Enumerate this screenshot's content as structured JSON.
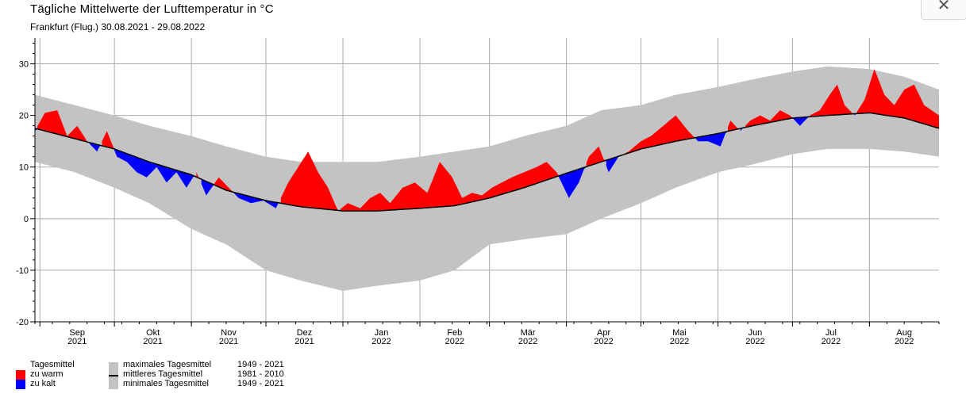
{
  "title": "Tägliche Mittelwerte der Lufttemperatur in °C",
  "subtitle": "Frankfurt (Flug.)  30.08.2021 - 29.08.2022",
  "close_icon": "close-icon",
  "legend": {
    "header": "Tagesmittel",
    "warm_label": "zu warm",
    "cold_label": "zu kalt",
    "max_label": "maximales Tagesmittel",
    "max_period": "1949 - 2021",
    "mean_label": "mittleres Tagesmittel",
    "mean_period": "1981 - 2010",
    "min_label": "minimales Tagesmittel",
    "min_period": "1949 - 2021"
  },
  "chart_data": {
    "type": "area",
    "title": "Tägliche Mittelwerte der Lufttemperatur in °C",
    "subtitle": "Frankfurt (Flug.)  30.08.2021 - 29.08.2022",
    "x_range": [
      "2021-08-30",
      "2022-08-29"
    ],
    "ylim": [
      -20,
      35
    ],
    "y_ticks": [
      -20,
      -10,
      0,
      10,
      20,
      30
    ],
    "grid": true,
    "colors": {
      "warm": "#ff0000",
      "cold": "#0000ff",
      "band": "#c3c3c3",
      "mean": "#000000",
      "grid": "#aaaaaa"
    },
    "x_ticks": [
      {
        "month": "Sep",
        "year": "2021"
      },
      {
        "month": "Okt",
        "year": "2021"
      },
      {
        "month": "Nov",
        "year": "2021"
      },
      {
        "month": "Dez",
        "year": "2021"
      },
      {
        "month": "Jan",
        "year": "2022"
      },
      {
        "month": "Feb",
        "year": "2022"
      },
      {
        "month": "Mär",
        "year": "2022"
      },
      {
        "month": "Apr",
        "year": "2022"
      },
      {
        "month": "Mai",
        "year": "2022"
      },
      {
        "month": "Jun",
        "year": "2022"
      },
      {
        "month": "Jul",
        "year": "2022"
      },
      {
        "month": "Aug",
        "year": "2022"
      }
    ],
    "series": [
      {
        "name": "mittleres Tagesmittel 1981 - 2010",
        "x": [
          "2021-08-30",
          "2021-09-15",
          "2021-10-01",
          "2021-10-15",
          "2021-11-01",
          "2021-11-15",
          "2021-12-01",
          "2021-12-15",
          "2022-01-01",
          "2022-01-15",
          "2022-02-01",
          "2022-02-15",
          "2022-03-01",
          "2022-03-15",
          "2022-04-01",
          "2022-04-15",
          "2022-05-01",
          "2022-05-15",
          "2022-06-01",
          "2022-06-15",
          "2022-07-01",
          "2022-07-15",
          "2022-08-01",
          "2022-08-15",
          "2022-08-29"
        ],
        "values": [
          17.5,
          15.5,
          13.5,
          11,
          8.5,
          5.5,
          3.5,
          2.3,
          1.5,
          1.5,
          2,
          2.5,
          4,
          6,
          8.8,
          11,
          13.5,
          15,
          16.5,
          18,
          19.5,
          20,
          20.5,
          19.5,
          17.5
        ]
      },
      {
        "name": "maximales Tagesmittel 1949 - 2021",
        "x": [
          "2021-08-30",
          "2021-09-15",
          "2021-10-01",
          "2021-10-15",
          "2021-11-01",
          "2021-11-15",
          "2021-12-01",
          "2021-12-15",
          "2022-01-01",
          "2022-01-15",
          "2022-02-01",
          "2022-02-15",
          "2022-03-01",
          "2022-03-15",
          "2022-04-01",
          "2022-04-15",
          "2022-05-01",
          "2022-05-15",
          "2022-06-01",
          "2022-06-15",
          "2022-07-01",
          "2022-07-15",
          "2022-08-01",
          "2022-08-15",
          "2022-08-29"
        ],
        "values": [
          24,
          22,
          20,
          18,
          16,
          14,
          12,
          11,
          11,
          11,
          12,
          13,
          14,
          16,
          18,
          21,
          22,
          24,
          25.5,
          27,
          28.5,
          29.5,
          29,
          27.5,
          25
        ]
      },
      {
        "name": "minimales Tagesmittel 1949 - 2021",
        "x": [
          "2021-08-30",
          "2021-09-15",
          "2021-10-01",
          "2021-10-15",
          "2021-11-01",
          "2021-11-15",
          "2021-12-01",
          "2021-12-15",
          "2022-01-01",
          "2022-01-15",
          "2022-02-01",
          "2022-02-15",
          "2022-03-01",
          "2022-03-15",
          "2022-04-01",
          "2022-04-15",
          "2022-05-01",
          "2022-05-15",
          "2022-06-01",
          "2022-06-15",
          "2022-07-01",
          "2022-07-15",
          "2022-08-01",
          "2022-08-15",
          "2022-08-29"
        ],
        "values": [
          11,
          9,
          6,
          3,
          -2,
          -5,
          -10,
          -12,
          -14,
          -13,
          -12,
          -10,
          -5,
          -4,
          -3,
          0,
          3,
          6,
          9,
          10.5,
          12.5,
          13.5,
          13.5,
          13,
          12
        ]
      },
      {
        "name": "Tagesmittel",
        "x": [
          "2021-08-30",
          "2021-09-03",
          "2021-09-08",
          "2021-09-12",
          "2021-09-16",
          "2021-09-20",
          "2021-09-24",
          "2021-09-28",
          "2021-10-02",
          "2021-10-06",
          "2021-10-10",
          "2021-10-14",
          "2021-10-18",
          "2021-10-22",
          "2021-10-26",
          "2021-10-30",
          "2021-11-03",
          "2021-11-07",
          "2021-11-12",
          "2021-11-16",
          "2021-11-20",
          "2021-11-25",
          "2021-11-30",
          "2021-12-05",
          "2021-12-10",
          "2021-12-14",
          "2021-12-18",
          "2021-12-22",
          "2021-12-26",
          "2021-12-30",
          "2022-01-03",
          "2022-01-08",
          "2022-01-12",
          "2022-01-16",
          "2022-01-20",
          "2022-01-25",
          "2022-01-30",
          "2022-02-04",
          "2022-02-09",
          "2022-02-14",
          "2022-02-18",
          "2022-02-22",
          "2022-02-26",
          "2022-03-02",
          "2022-03-06",
          "2022-03-10",
          "2022-03-15",
          "2022-03-20",
          "2022-03-24",
          "2022-03-28",
          "2022-04-02",
          "2022-04-06",
          "2022-04-10",
          "2022-04-14",
          "2022-04-18",
          "2022-04-22",
          "2022-04-26",
          "2022-05-01",
          "2022-05-05",
          "2022-05-10",
          "2022-05-15",
          "2022-05-20",
          "2022-05-24",
          "2022-05-28",
          "2022-06-02",
          "2022-06-06",
          "2022-06-10",
          "2022-06-14",
          "2022-06-18",
          "2022-06-22",
          "2022-06-26",
          "2022-06-30",
          "2022-07-04",
          "2022-07-08",
          "2022-07-12",
          "2022-07-16",
          "2022-07-19",
          "2022-07-22",
          "2022-07-26",
          "2022-07-30",
          "2022-08-03",
          "2022-08-07",
          "2022-08-11",
          "2022-08-15",
          "2022-08-19",
          "2022-08-23",
          "2022-08-29"
        ],
        "values": [
          17,
          20.5,
          21,
          16,
          18,
          15,
          13,
          17,
          12,
          11,
          9,
          8,
          10,
          7,
          9,
          6,
          9,
          4.5,
          8,
          6,
          4,
          3,
          3.5,
          2,
          7,
          10,
          13,
          9,
          6,
          1.5,
          3,
          2,
          4,
          5,
          3,
          6,
          7,
          5,
          11,
          8,
          4,
          5,
          4.5,
          6,
          7,
          8,
          9,
          10,
          11,
          9,
          4,
          7,
          12,
          14,
          9,
          12,
          13,
          15,
          16,
          18,
          20,
          17,
          15,
          15,
          14,
          19,
          17,
          19,
          20,
          19,
          21,
          20,
          18,
          20,
          21,
          24,
          26,
          22,
          20,
          23,
          29,
          24,
          22,
          25,
          26,
          22,
          20
        ]
      }
    ]
  }
}
